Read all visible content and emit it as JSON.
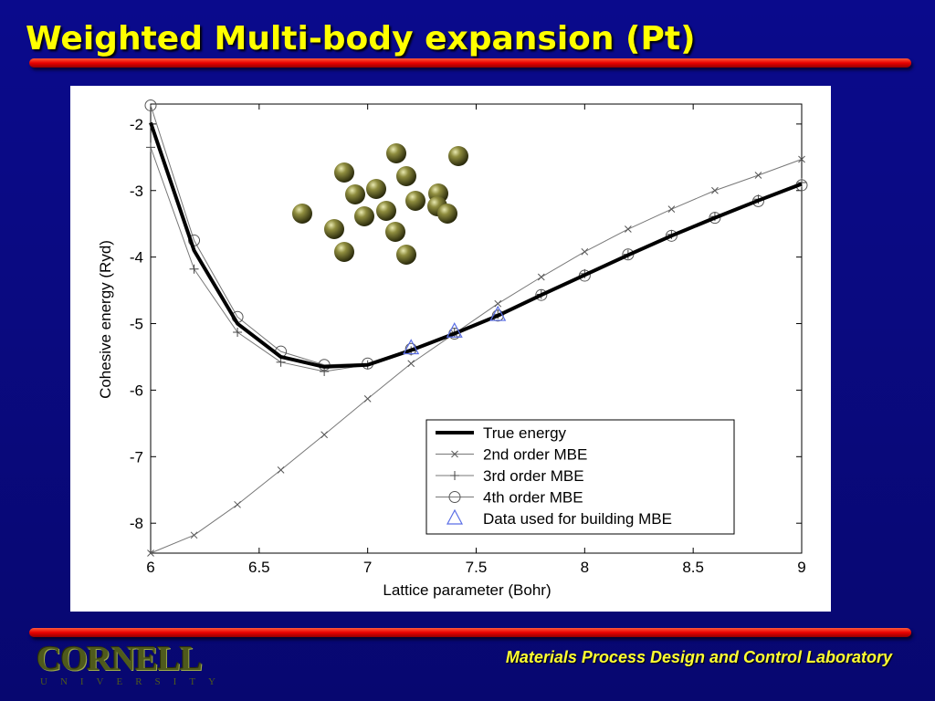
{
  "slide": {
    "title": "Weighted Multi-body expansion (Pt)",
    "footer": "Materials Process Design and Control Laboratory",
    "logo_text": "CORNELL",
    "logo_subtext": "UNIVERSITY"
  },
  "colors": {
    "background": "#0a0a80",
    "title": "#ffff00",
    "accent_bar": "#e80000",
    "triangle": "#5a6ee6",
    "sphere": "#7a7a30"
  },
  "chart_data": {
    "type": "line",
    "xlabel": "Lattice parameter (Bohr)",
    "ylabel": "Cohesive energy (Ryd)",
    "xlim": [
      6,
      9
    ],
    "ylim": [
      -8.45,
      -1.7
    ],
    "xticks": [
      6,
      6.5,
      7,
      7.5,
      8,
      8.5,
      9
    ],
    "xtick_labels": [
      "6",
      "6.5",
      "7",
      "7.5",
      "8",
      "8.5",
      "9"
    ],
    "yticks": [
      -2,
      -3,
      -4,
      -5,
      -6,
      -7,
      -8
    ],
    "ytick_labels": [
      "-2",
      "-3",
      "-4",
      "-5",
      "-6",
      "-7",
      "-8"
    ],
    "grid": false,
    "legend_position": "bottom-right",
    "series": [
      {
        "name": "True energy",
        "marker": "none",
        "x": [
          6,
          6.2,
          6.4,
          6.6,
          6.8,
          7.0,
          7.2,
          7.4,
          7.6,
          7.8,
          8.0,
          8.2,
          8.4,
          8.6,
          8.8,
          9.0
        ],
        "y": [
          -1.98,
          -3.9,
          -5.0,
          -5.5,
          -5.65,
          -5.62,
          -5.4,
          -5.15,
          -4.88,
          -4.57,
          -4.27,
          -3.97,
          -3.68,
          -3.41,
          -3.15,
          -2.9
        ]
      },
      {
        "name": "2nd order MBE",
        "marker": "x",
        "x": [
          6,
          6.2,
          6.4,
          6.6,
          6.8,
          7.0,
          7.2,
          7.4,
          7.6,
          7.8,
          8.0,
          8.2,
          8.4,
          8.6,
          8.8,
          9.0
        ],
        "y": [
          -8.45,
          -8.18,
          -7.72,
          -7.2,
          -6.67,
          -6.13,
          -5.6,
          -5.15,
          -4.7,
          -4.3,
          -3.92,
          -3.58,
          -3.28,
          -3.0,
          -2.77,
          -2.53
        ]
      },
      {
        "name": "3rd order MBE",
        "marker": "+",
        "x": [
          6,
          6.2,
          6.4,
          6.6,
          6.8,
          7.0,
          7.2,
          7.4,
          7.6,
          7.8,
          8.0,
          8.2,
          8.4,
          8.6,
          8.8,
          9.0
        ],
        "y": [
          -2.35,
          -4.18,
          -5.13,
          -5.58,
          -5.72,
          -5.62,
          -5.41,
          -5.14,
          -4.86,
          -4.56,
          -4.25,
          -3.96,
          -3.66,
          -3.39,
          -3.13,
          -2.88
        ]
      },
      {
        "name": "4th order MBE",
        "marker": "o",
        "x": [
          6,
          6.2,
          6.4,
          6.6,
          6.8,
          7.0,
          7.2,
          7.4,
          7.6,
          7.8,
          8.0,
          8.2,
          8.4,
          8.6,
          8.8,
          9.0
        ],
        "y": [
          -1.72,
          -3.75,
          -4.9,
          -5.42,
          -5.62,
          -5.6,
          -5.38,
          -5.15,
          -4.88,
          -4.57,
          -4.28,
          -3.96,
          -3.68,
          -3.41,
          -3.16,
          -2.92
        ]
      },
      {
        "name": "Data used for building MBE",
        "marker": "triangle",
        "x": [
          7.2,
          7.4,
          7.6
        ],
        "y": [
          -5.37,
          -5.12,
          -4.87
        ]
      }
    ]
  }
}
